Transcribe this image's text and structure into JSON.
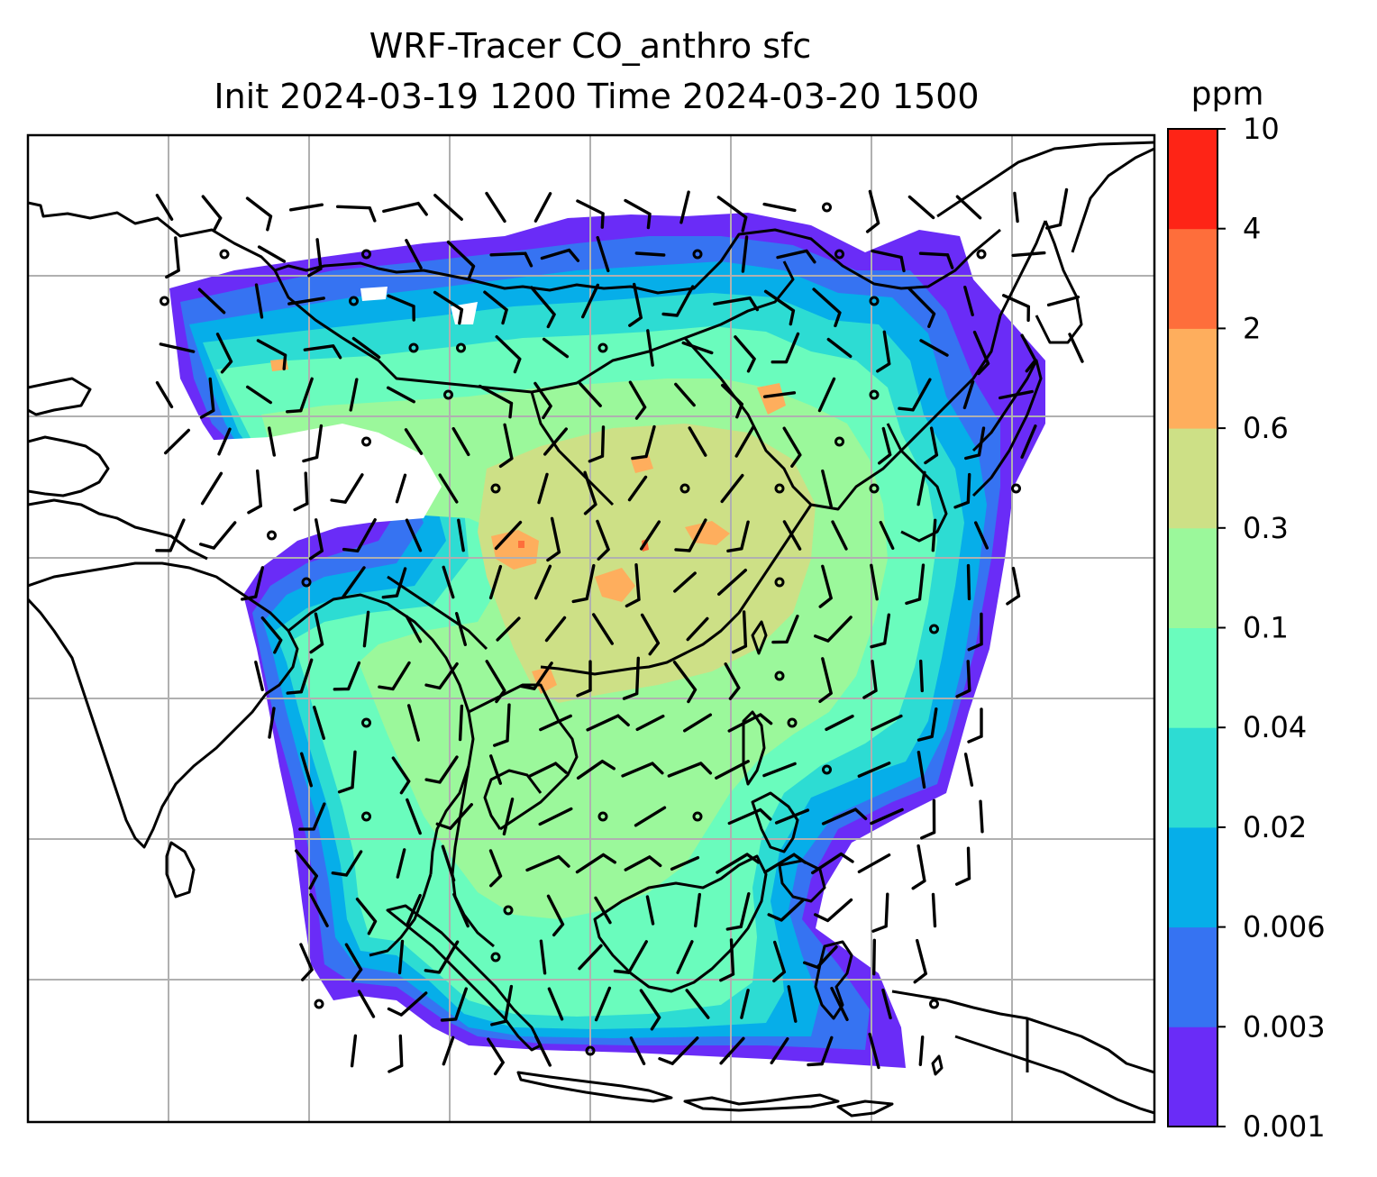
{
  "chart_data": {
    "type": "heatmap",
    "title_lines": [
      "WRF-Tracer CO_anthro sfc",
      "Init 2024-03-19 1200 Time 2024-03-20 1500"
    ],
    "colorbar": {
      "unit": "ppm",
      "levels": [
        "0.001",
        "0.003",
        "0.006",
        "0.02",
        "0.04",
        "0.1",
        "0.3",
        "0.6",
        "2",
        "4",
        "10"
      ],
      "colors": [
        "#6a2cf7",
        "#3673f2",
        "#06aee9",
        "#2ddcd3",
        "#6afcbd",
        "#9bf89b",
        "#cde086",
        "#feae5d",
        "#fe6e3b",
        "#fe2416"
      ]
    },
    "map": {
      "gridlines": true,
      "grid_color": "#b0b0b0",
      "coastline_color": "#000000",
      "background": "#ffffff"
    }
  }
}
